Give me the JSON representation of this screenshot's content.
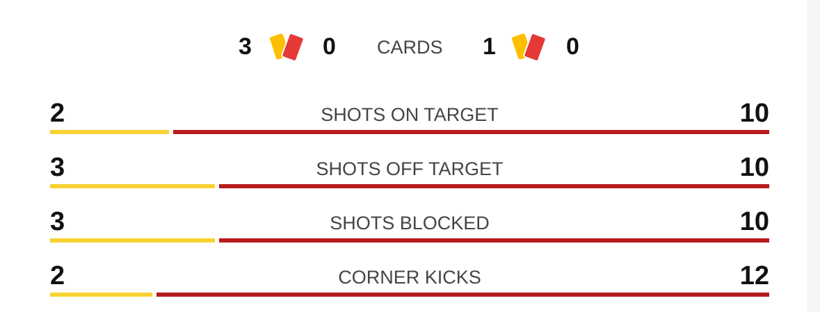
{
  "cards": {
    "label": "CARDS",
    "home": {
      "yellow": "3",
      "red": "0"
    },
    "away": {
      "yellow": "1",
      "red": "0"
    },
    "icon": "yellow-red-cards-icon"
  },
  "colors": {
    "home": "#f7d232",
    "away": "#b71c1c",
    "yellow_card": "#ffbf00",
    "red_card": "#e53935"
  },
  "stats": [
    {
      "label": "SHOTS ON TARGET",
      "home": 2,
      "away": 10
    },
    {
      "label": "SHOTS OFF TARGET",
      "home": 3,
      "away": 10
    },
    {
      "label": "SHOTS BLOCKED",
      "home": 3,
      "away": 10
    },
    {
      "label": "CORNER KICKS",
      "home": 2,
      "away": 12
    }
  ]
}
